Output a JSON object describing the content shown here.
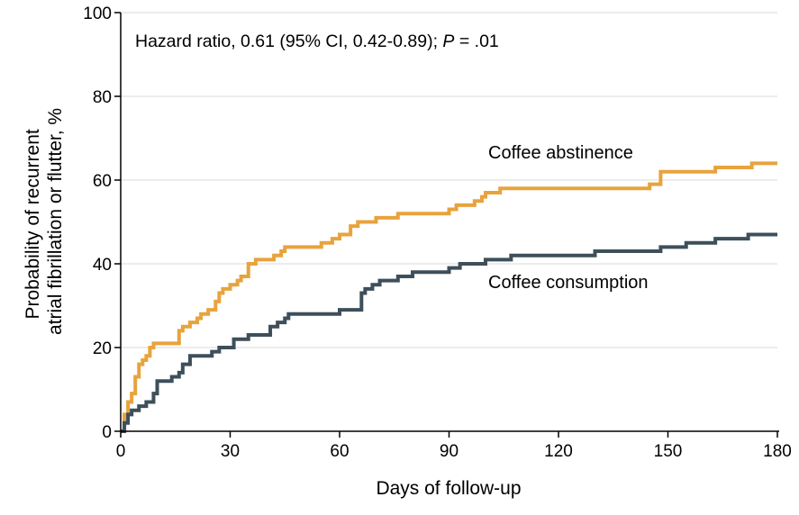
{
  "chart_data": {
    "type": "line",
    "step": true,
    "annotation": {
      "prefix": "Hazard ratio, 0.61 (95% CI, 0.42-0.89); ",
      "p_symbol": "P",
      "p_value": " = .01"
    },
    "xlabel": "Days of follow-up",
    "ylabel_lines": [
      "Probability of recurrent",
      "atrial fibrillation or flutter, %"
    ],
    "xlim": [
      0,
      180
    ],
    "ylim": [
      0,
      100
    ],
    "xticks": [
      0,
      30,
      60,
      90,
      120,
      150,
      180
    ],
    "yticks": [
      0,
      20,
      40,
      60,
      80,
      100
    ],
    "grid": "horizontal",
    "series": [
      {
        "name": "Coffee abstinence",
        "color": "#e8a33d",
        "x": [
          0,
          1,
          2,
          3,
          4,
          5,
          6,
          7,
          8,
          9,
          12,
          16,
          17,
          19,
          21,
          22,
          24,
          25,
          26,
          27,
          28,
          30,
          32,
          33,
          35,
          37,
          42,
          44,
          45,
          55,
          58,
          60,
          63,
          65,
          70,
          76,
          90,
          92,
          97,
          99,
          100,
          104,
          142,
          145,
          148,
          163,
          171,
          173,
          180
        ],
        "y": [
          0,
          4,
          7,
          9,
          13,
          16,
          17,
          18,
          20,
          21,
          21,
          24,
          25,
          26,
          27,
          28,
          29,
          29,
          31,
          33,
          34,
          35,
          36,
          37,
          40,
          41,
          42,
          43,
          44,
          45,
          46,
          47,
          49,
          50,
          51,
          52,
          53,
          54,
          55,
          56,
          57,
          58,
          58,
          59,
          62,
          63,
          63,
          64,
          64
        ]
      },
      {
        "name": "Coffee consumption",
        "color": "#3d4f5a",
        "x": [
          0,
          1,
          2,
          3,
          5,
          7,
          9,
          10,
          14,
          16,
          17,
          19,
          25,
          27,
          31,
          35,
          41,
          43,
          45,
          46,
          60,
          66,
          67,
          69,
          71,
          76,
          80,
          90,
          93,
          100,
          100,
          107,
          110,
          130,
          133,
          148,
          155,
          163,
          168,
          172,
          180
        ],
        "y": [
          0,
          2,
          4,
          5,
          6,
          7,
          9,
          12,
          13,
          14,
          16,
          18,
          19,
          20,
          22,
          23,
          25,
          26,
          27,
          28,
          29,
          33,
          34,
          35,
          36,
          37,
          38,
          39,
          40,
          41,
          41,
          42,
          42,
          43,
          43,
          44,
          45,
          46,
          46,
          47,
          47
        ]
      }
    ]
  }
}
